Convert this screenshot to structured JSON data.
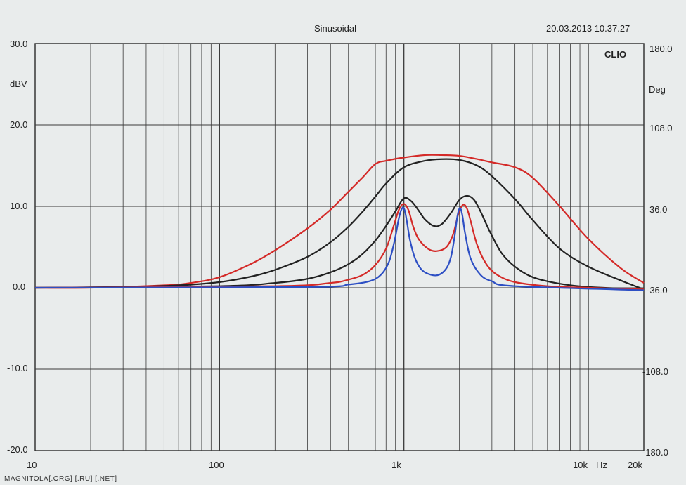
{
  "header": {
    "title": "Sinusoidal",
    "timestamp": "20.03.2013 10.37.27",
    "brand": "CLIO"
  },
  "footer": {
    "watermark": "MAGNITOLA[.ORG] [.RU] [.NET]"
  },
  "colors": {
    "red": "#d42a28",
    "black": "#222222",
    "blue": "#2d4fc4",
    "grid": "#3a3a3a"
  },
  "chart_data": {
    "type": "line",
    "title": "Sinusoidal",
    "xlabel": "Hz",
    "ylabel": "dBV",
    "y2label": "Deg",
    "xscale": "log",
    "xlim": [
      10,
      20000
    ],
    "ylim": [
      -20,
      30
    ],
    "y2lim": [
      -180,
      180
    ],
    "grid": true,
    "x_tick_labels": [
      {
        "value": 10,
        "label": "10"
      },
      {
        "value": 100,
        "label": "100"
      },
      {
        "value": 1000,
        "label": "1k"
      },
      {
        "value": 10000,
        "label": "10k"
      },
      {
        "value": 20000,
        "label": "20k"
      }
    ],
    "y_tick_labels": [
      "30.0",
      "20.0",
      "10.0",
      "0.0",
      "-10.0",
      "-20.0"
    ],
    "y2_tick_labels": [
      "180.0",
      "108.0",
      "36.0",
      "-36.0",
      "-108.0",
      "-180.0"
    ],
    "series": [
      {
        "color": "#d42a28",
        "x": [
          10,
          20,
          50,
          70,
          100,
          150,
          200,
          300,
          400,
          500,
          600,
          700,
          800,
          1000,
          1300,
          1600,
          2000,
          2500,
          3000,
          4000,
          5000,
          7000,
          10000,
          15000,
          20000
        ],
        "y": [
          0,
          0,
          0.3,
          0.6,
          1.3,
          3.0,
          4.6,
          7.3,
          9.6,
          11.8,
          13.6,
          15.2,
          15.6,
          16.0,
          16.3,
          16.3,
          16.2,
          15.8,
          15.4,
          14.8,
          13.5,
          10.0,
          6.0,
          2.4,
          0.6
        ]
      },
      {
        "color": "#222222",
        "x": [
          10,
          30,
          60,
          100,
          150,
          200,
          300,
          400,
          500,
          600,
          700,
          800,
          1000,
          1300,
          1600,
          2000,
          2500,
          3000,
          4000,
          5000,
          7000,
          10000,
          15000,
          20000
        ],
        "y": [
          0,
          0.1,
          0.3,
          0.7,
          1.4,
          2.2,
          3.8,
          5.6,
          7.5,
          9.4,
          11.2,
          12.8,
          14.8,
          15.6,
          15.8,
          15.7,
          15.0,
          13.7,
          10.9,
          8.3,
          4.8,
          2.6,
          0.9,
          -0.2
        ]
      },
      {
        "color": "#222222",
        "x": [
          10,
          100,
          200,
          300,
          400,
          500,
          600,
          700,
          800,
          900,
          1000,
          1100,
          1200,
          1300,
          1450,
          1600,
          1800,
          2000,
          2200,
          2400,
          2600,
          2800,
          3000,
          3400,
          4000,
          5000,
          7000,
          10000,
          20000
        ],
        "y": [
          0,
          0.2,
          0.6,
          1.1,
          1.9,
          2.9,
          4.2,
          5.8,
          7.6,
          9.4,
          11.0,
          10.6,
          9.5,
          8.4,
          7.6,
          7.8,
          9.2,
          10.8,
          11.3,
          10.8,
          9.4,
          7.8,
          6.4,
          4.2,
          2.6,
          1.3,
          0.5,
          0.1,
          -0.2
        ]
      },
      {
        "color": "#d42a28",
        "x": [
          10,
          200,
          400,
          500,
          600,
          700,
          800,
          880,
          940,
          1000,
          1060,
          1120,
          1200,
          1350,
          1500,
          1700,
          1850,
          1980,
          2100,
          2200,
          2300,
          2500,
          2800,
          3200,
          4000,
          6000,
          10000,
          20000
        ],
        "y": [
          0,
          0.2,
          0.6,
          1.0,
          1.6,
          2.8,
          4.8,
          7.6,
          9.6,
          10.3,
          9.5,
          7.6,
          6.0,
          4.8,
          4.5,
          5.0,
          6.6,
          9.2,
          10.2,
          9.7,
          8.2,
          5.2,
          2.9,
          1.6,
          0.7,
          0.2,
          0,
          -0.2
        ]
      },
      {
        "color": "#2d4fc4",
        "x": [
          10,
          300,
          500,
          650,
          750,
          830,
          890,
          940,
          980,
          1010,
          1040,
          1080,
          1150,
          1250,
          1400,
          1550,
          1700,
          1800,
          1880,
          1950,
          2010,
          2070,
          2150,
          2300,
          2600,
          3000,
          4000,
          20000
        ],
        "y": [
          0,
          0.1,
          0.4,
          0.8,
          1.6,
          3.2,
          5.8,
          8.6,
          9.8,
          9.5,
          8.0,
          5.8,
          3.6,
          2.2,
          1.6,
          1.6,
          2.4,
          3.8,
          6.2,
          8.8,
          9.8,
          9.0,
          6.6,
          3.6,
          1.6,
          0.8,
          0.2,
          -0.3
        ]
      }
    ]
  }
}
